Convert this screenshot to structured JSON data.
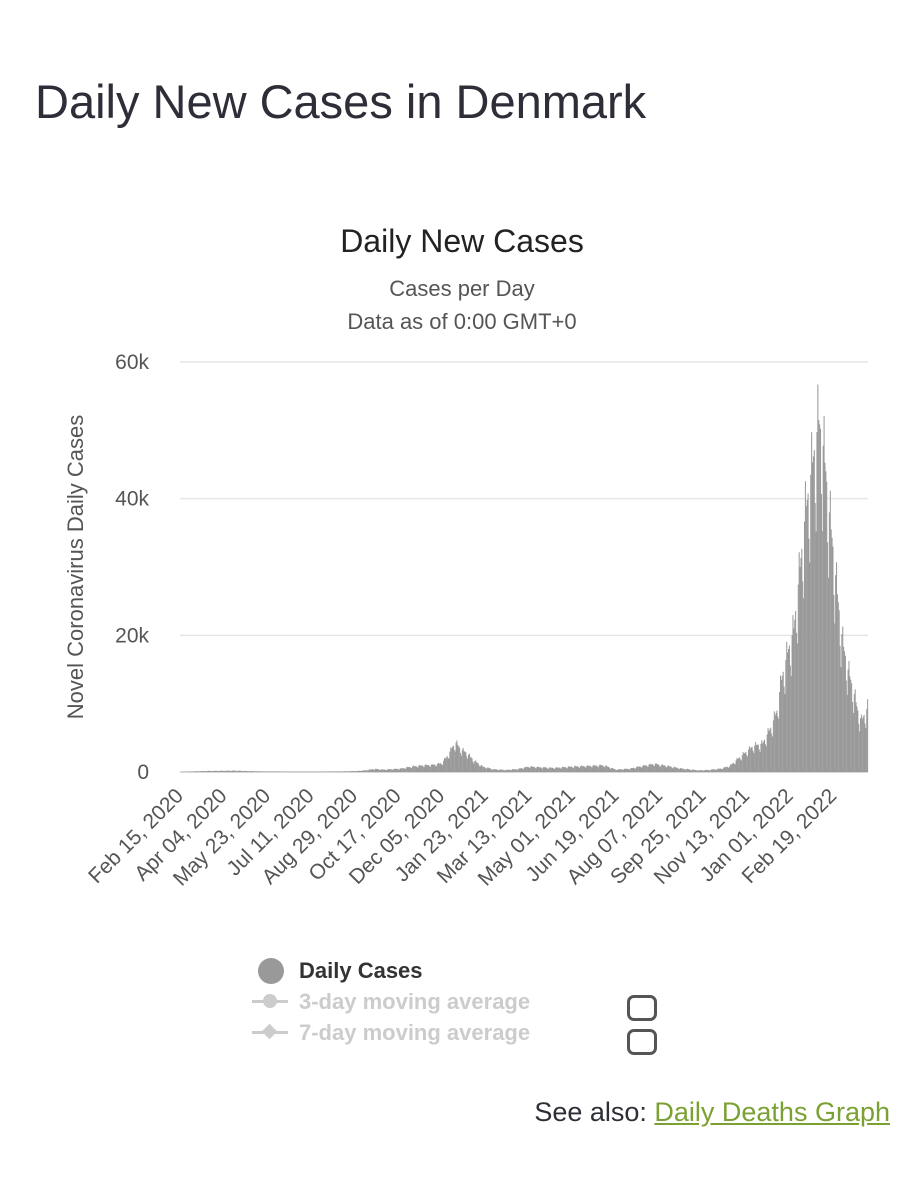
{
  "page": {
    "title": "Daily New Cases in Denmark"
  },
  "chart_data": {
    "type": "bar",
    "title": "Daily New Cases",
    "subtitle": "Cases per Day",
    "subtitle2": "Data as of 0:00 GMT+0",
    "ylabel": "Novel Coronavirus Daily Cases",
    "xlabel": "",
    "ylim": [
      0,
      60000
    ],
    "y_ticks": [
      {
        "value": 0,
        "label": "0"
      },
      {
        "value": 20000,
        "label": "20k"
      },
      {
        "value": 40000,
        "label": "40k"
      },
      {
        "value": 60000,
        "label": "60k"
      }
    ],
    "x_start": "2020-02-15",
    "x_end": "2022-03-29",
    "x_ticks": [
      "Feb 15, 2020",
      "Apr 04, 2020",
      "May 23, 2020",
      "Jul 11, 2020",
      "Aug 29, 2020",
      "Oct 17, 2020",
      "Dec 05, 2020",
      "Jan 23, 2021",
      "Mar 13, 2021",
      "May 01, 2021",
      "Jun 19, 2021",
      "Aug 07, 2021",
      "Sep 25, 2021",
      "Nov 13, 2021",
      "Jan 01, 2022",
      "Feb 19, 2022"
    ],
    "grid": true,
    "color": "#999999",
    "legend_position": "bottom",
    "series": [
      {
        "name": "Daily Cases",
        "points": [
          [
            "2020-02-15",
            0
          ],
          [
            "2020-03-15",
            150
          ],
          [
            "2020-04-15",
            200
          ],
          [
            "2020-05-15",
            80
          ],
          [
            "2020-06-15",
            40
          ],
          [
            "2020-07-15",
            30
          ],
          [
            "2020-08-15",
            80
          ],
          [
            "2020-09-01",
            150
          ],
          [
            "2020-09-10",
            250
          ],
          [
            "2020-09-20",
            450
          ],
          [
            "2020-10-01",
            350
          ],
          [
            "2020-10-20",
            500
          ],
          [
            "2020-11-01",
            800
          ],
          [
            "2020-11-15",
            1000
          ],
          [
            "2020-11-25",
            1050
          ],
          [
            "2020-12-05",
            1300
          ],
          [
            "2020-12-12",
            2500
          ],
          [
            "2020-12-17",
            3700
          ],
          [
            "2020-12-21",
            4300
          ],
          [
            "2020-12-26",
            3400
          ],
          [
            "2021-01-02",
            2800
          ],
          [
            "2021-01-10",
            1700
          ],
          [
            "2021-01-20",
            800
          ],
          [
            "2021-02-01",
            400
          ],
          [
            "2021-02-15",
            300
          ],
          [
            "2021-03-01",
            450
          ],
          [
            "2021-03-13",
            800
          ],
          [
            "2021-03-25",
            700
          ],
          [
            "2021-04-10",
            600
          ],
          [
            "2021-05-01",
            800
          ],
          [
            "2021-05-20",
            900
          ],
          [
            "2021-06-05",
            1000
          ],
          [
            "2021-06-19",
            350
          ],
          [
            "2021-07-05",
            500
          ],
          [
            "2021-07-15",
            800
          ],
          [
            "2021-08-01",
            1200
          ],
          [
            "2021-08-15",
            900
          ],
          [
            "2021-09-01",
            500
          ],
          [
            "2021-09-20",
            250
          ],
          [
            "2021-10-01",
            300
          ],
          [
            "2021-10-15",
            500
          ],
          [
            "2021-10-25",
            900
          ],
          [
            "2021-11-01",
            1700
          ],
          [
            "2021-11-10",
            2700
          ],
          [
            "2021-11-20",
            3800
          ],
          [
            "2021-12-01",
            4200
          ],
          [
            "2021-12-10",
            6500
          ],
          [
            "2021-12-17",
            9000
          ],
          [
            "2021-12-22",
            13500
          ],
          [
            "2021-12-28",
            17000
          ],
          [
            "2022-01-05",
            21000
          ],
          [
            "2022-01-12",
            30000
          ],
          [
            "2022-01-18",
            38000
          ],
          [
            "2022-01-24",
            43500
          ],
          [
            "2022-01-29",
            48000
          ],
          [
            "2022-02-02",
            51500
          ],
          [
            "2022-02-06",
            49000
          ],
          [
            "2022-02-10",
            44000
          ],
          [
            "2022-02-14",
            38000
          ],
          [
            "2022-02-18",
            33000
          ],
          [
            "2022-02-23",
            26000
          ],
          [
            "2022-03-01",
            19000
          ],
          [
            "2022-03-07",
            15000
          ],
          [
            "2022-03-13",
            12000
          ],
          [
            "2022-03-18",
            9000
          ],
          [
            "2022-03-22",
            7500
          ],
          [
            "2022-03-29",
            9500
          ]
        ]
      }
    ]
  },
  "legend": {
    "items": [
      {
        "label": "Daily Cases",
        "active": true
      },
      {
        "label": "3-day moving average",
        "active": false
      },
      {
        "label": "7-day moving average",
        "active": false
      }
    ]
  },
  "see_also": {
    "prefix": "See also: ",
    "link": "Daily Deaths Graph"
  }
}
